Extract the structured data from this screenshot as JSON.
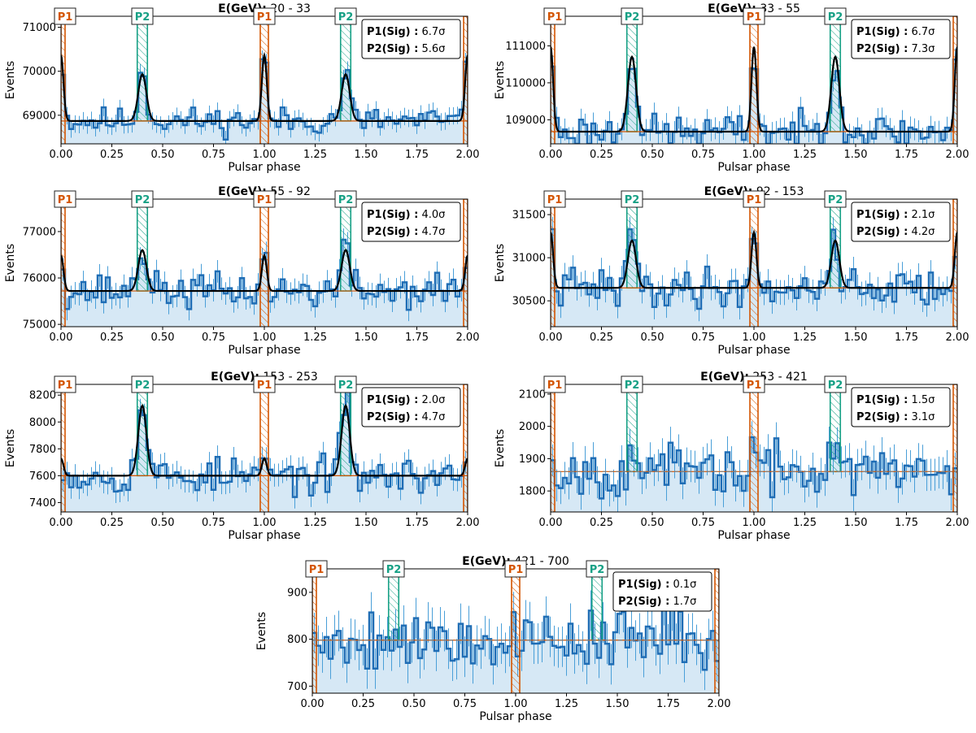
{
  "chart_data": [
    {
      "type": "histogram",
      "title_prefix": "E(GeV):",
      "title_range": "20 - 33",
      "xlabel": "Pulsar phase",
      "ylabel": "Events",
      "xlim": [
        0,
        2
      ],
      "ylim": [
        68350,
        71250
      ],
      "xticks": [
        "0.00",
        "0.25",
        "0.50",
        "0.75",
        "1.00",
        "1.25",
        "1.50",
        "1.75",
        "2.00"
      ],
      "yticks": [
        69000,
        70000,
        71000
      ],
      "ytick_labels": [
        "69000",
        "70000",
        "71000"
      ],
      "baseline": 68870,
      "p1_amp": 1760,
      "p2_amp": 1180,
      "noise": 220,
      "seed": 11,
      "p1_label": "P1",
      "p2_label": "P2",
      "sig1_label": "P1(Sig) :",
      "sig1_value": "6.7σ",
      "sig2_label": "P2(Sig) :",
      "sig2_value": "5.6σ",
      "show_fit": true
    },
    {
      "type": "histogram",
      "title_prefix": "E(GeV):",
      "title_range": "33 - 55",
      "xlabel": "Pulsar phase",
      "ylabel": "Events",
      "xlim": [
        0,
        2
      ],
      "ylim": [
        108350,
        111800
      ],
      "xticks": [
        "0.00",
        "0.25",
        "0.50",
        "0.75",
        "1.00",
        "1.25",
        "1.50",
        "1.75",
        "2.00"
      ],
      "yticks": [
        109000,
        110000,
        111000
      ],
      "ytick_labels": [
        "109000",
        "110000",
        "111000"
      ],
      "baseline": 108680,
      "p1_amp": 2700,
      "p2_amp": 2250,
      "noise": 330,
      "seed": 23,
      "p1_label": "P1",
      "p2_label": "P2",
      "sig1_label": "P1(Sig) :",
      "sig1_value": "6.7σ",
      "sig2_label": "P2(Sig) :",
      "sig2_value": "7.3σ",
      "show_fit": true
    },
    {
      "type": "histogram",
      "title_prefix": "E(GeV):",
      "title_range": "55 - 92",
      "xlabel": "Pulsar phase",
      "ylabel": "Events",
      "xlim": [
        0,
        2
      ],
      "ylim": [
        74950,
        77700
      ],
      "xticks": [
        "0.00",
        "0.25",
        "0.50",
        "0.75",
        "1.00",
        "1.25",
        "1.50",
        "1.75",
        "2.00"
      ],
      "yticks": [
        75000,
        76000,
        77000
      ],
      "ytick_labels": [
        "75000",
        "76000",
        "77000"
      ],
      "baseline": 75720,
      "p1_amp": 900,
      "p2_amp": 980,
      "noise": 270,
      "seed": 37,
      "p1_label": "P1",
      "p2_label": "P2",
      "sig1_label": "P1(Sig) :",
      "sig1_value": "4.0σ",
      "sig2_label": "P2(Sig) :",
      "sig2_value": "4.7σ",
      "show_fit": true
    },
    {
      "type": "histogram",
      "title_prefix": "E(GeV):",
      "title_range": "92 - 153",
      "xlabel": "Pulsar phase",
      "ylabel": "Events",
      "xlim": [
        0,
        2
      ],
      "ylim": [
        30200,
        31680
      ],
      "xticks": [
        "0.00",
        "0.25",
        "0.50",
        "0.75",
        "1.00",
        "1.25",
        "1.50",
        "1.75",
        "2.00"
      ],
      "yticks": [
        30500,
        31000,
        31500
      ],
      "ytick_labels": [
        "30500",
        "31000",
        "31500"
      ],
      "baseline": 30650,
      "p1_amp": 760,
      "p2_amp": 610,
      "noise": 160,
      "seed": 41,
      "p1_label": "P1",
      "p2_label": "P2",
      "sig1_label": "P1(Sig) :",
      "sig1_value": "2.1σ",
      "sig2_label": "P2(Sig) :",
      "sig2_value": "4.2σ",
      "show_fit": true
    },
    {
      "type": "histogram",
      "title_prefix": "E(GeV):",
      "title_range": "153 - 253",
      "xlabel": "Pulsar phase",
      "ylabel": "Events",
      "xlim": [
        0,
        2
      ],
      "ylim": [
        7330,
        8280
      ],
      "xticks": [
        "0.00",
        "0.25",
        "0.50",
        "0.75",
        "1.00",
        "1.25",
        "1.50",
        "1.75",
        "2.00"
      ],
      "yticks": [
        7400,
        7600,
        7800,
        8000,
        8200
      ],
      "ytick_labels": [
        "7400",
        "7600",
        "7800",
        "8000",
        "8200"
      ],
      "baseline": 7600,
      "p1_amp": 150,
      "p2_amp": 580,
      "noise": 95,
      "seed": 53,
      "p1_label": "P1",
      "p2_label": "P2",
      "sig1_label": "P1(Sig) :",
      "sig1_value": "2.0σ",
      "sig2_label": "P2(Sig) :",
      "sig2_value": "4.7σ",
      "show_fit": true
    },
    {
      "type": "histogram",
      "title_prefix": "E(GeV):",
      "title_range": "253 - 421",
      "xlabel": "Pulsar phase",
      "ylabel": "Events",
      "xlim": [
        0,
        2
      ],
      "ylim": [
        1735,
        2130
      ],
      "xticks": [
        "0.00",
        "0.25",
        "0.50",
        "0.75",
        "1.00",
        "1.25",
        "1.50",
        "1.75",
        "2.00"
      ],
      "yticks": [
        1800,
        1900,
        2000,
        2100
      ],
      "ytick_labels": [
        "1800",
        "1900",
        "2000",
        "2100"
      ],
      "baseline": 1860,
      "p1_amp": 70,
      "p2_amp": 90,
      "noise": 55,
      "seed": 67,
      "p1_label": "P1",
      "p2_label": "P2",
      "sig1_label": "P1(Sig) :",
      "sig1_value": "1.5σ",
      "sig2_label": "P2(Sig) :",
      "sig2_value": "3.1σ",
      "show_fit": false
    },
    {
      "type": "histogram",
      "title_prefix": "E(GeV):",
      "title_range": "421 - 700",
      "xlabel": "Pulsar phase",
      "ylabel": "Events",
      "xlim": [
        0,
        2
      ],
      "ylim": [
        685,
        950
      ],
      "xticks": [
        "0.00",
        "0.25",
        "0.50",
        "0.75",
        "1.00",
        "1.25",
        "1.50",
        "1.75",
        "2.00"
      ],
      "yticks": [
        700,
        800,
        900
      ],
      "ytick_labels": [
        "700",
        "800",
        "900"
      ],
      "baseline": 798,
      "p1_amp": 10,
      "p2_amp": 35,
      "noise": 48,
      "seed": 79,
      "p1_label": "P1",
      "p2_label": "P2",
      "sig1_label": "P1(Sig) :",
      "sig1_value": "0.1σ",
      "sig2_label": "P2(Sig) :",
      "sig2_value": "1.7σ",
      "show_fit": false
    }
  ],
  "colors": {
    "hist": "#1f6db5",
    "err": "#4a9fd8",
    "fill": "#d6e8f5",
    "fit": "#000000",
    "p1": "#d35400",
    "p2": "#16a085",
    "baseline": "#808080"
  }
}
